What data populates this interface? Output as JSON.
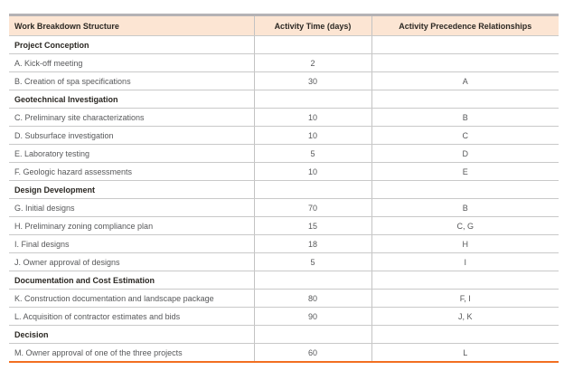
{
  "table": {
    "title": "Work Breakdown Structure table",
    "columns": [
      "Work Breakdown Structure",
      "Activity Time (days)",
      "Activity Precedence Relationships"
    ],
    "accent_colors": {
      "header_background": "#fce5d3",
      "bottom_border": "#f26f21",
      "top_border": "#b4b2b5",
      "grid_line": "#c9c9c9"
    },
    "rows": [
      {
        "type": "section",
        "label": "Project Conception",
        "time": "",
        "precedence": ""
      },
      {
        "type": "activity",
        "label": "A. Kick-off meeting",
        "time": "2",
        "precedence": ""
      },
      {
        "type": "activity",
        "label": "B. Creation of spa specifications",
        "time": "30",
        "precedence": "A"
      },
      {
        "type": "section",
        "label": "Geotechnical Investigation",
        "time": "",
        "precedence": ""
      },
      {
        "type": "activity",
        "label": "C. Preliminary site characterizations",
        "time": "10",
        "precedence": "B"
      },
      {
        "type": "activity",
        "label": "D. Subsurface investigation",
        "time": "10",
        "precedence": "C"
      },
      {
        "type": "activity",
        "label": "E. Laboratory testing",
        "time": "5",
        "precedence": "D"
      },
      {
        "type": "activity",
        "label": "F. Geologic hazard assessments",
        "time": "10",
        "precedence": "E"
      },
      {
        "type": "section",
        "label": "Design Development",
        "time": "",
        "precedence": ""
      },
      {
        "type": "activity",
        "label": "G. Initial designs",
        "time": "70",
        "precedence": "B"
      },
      {
        "type": "activity",
        "label": "H. Preliminary zoning compliance plan",
        "time": "15",
        "precedence": "C, G"
      },
      {
        "type": "activity",
        "label": "I. Final designs",
        "time": "18",
        "precedence": "H"
      },
      {
        "type": "activity",
        "label": "J. Owner approval of designs",
        "time": "5",
        "precedence": "I"
      },
      {
        "type": "section",
        "label": "Documentation and Cost Estimation",
        "time": "",
        "precedence": ""
      },
      {
        "type": "activity",
        "label": "K. Construction documentation and landscape package",
        "time": "80",
        "precedence": "F, I"
      },
      {
        "type": "activity",
        "label": "L. Acquisition of contractor estimates and bids",
        "time": "90",
        "precedence": "J, K"
      },
      {
        "type": "section",
        "label": "Decision",
        "time": "",
        "precedence": ""
      },
      {
        "type": "activity",
        "label": "M. Owner approval of one of the three projects",
        "time": "60",
        "precedence": "L"
      }
    ]
  }
}
